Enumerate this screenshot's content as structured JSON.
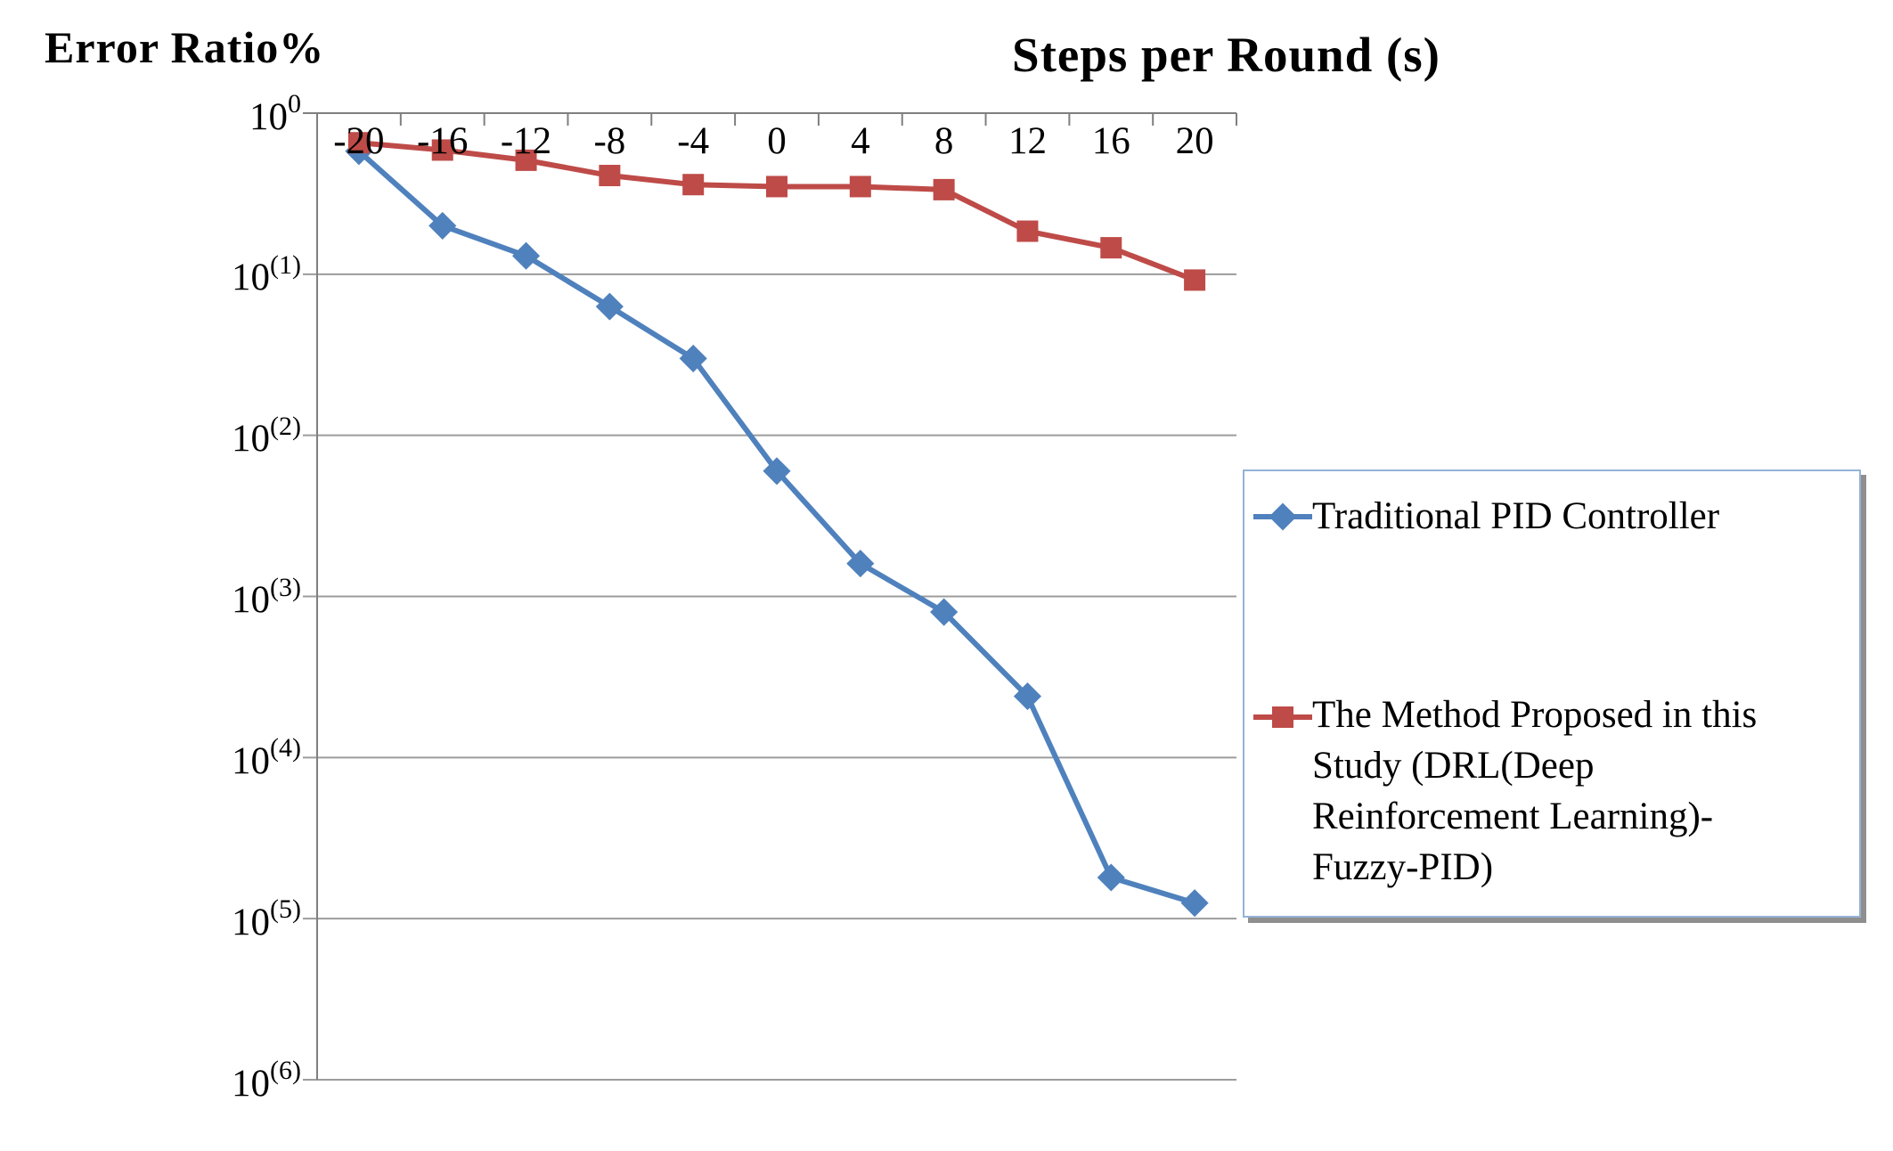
{
  "chart_data": {
    "type": "line",
    "title": "Steps per Round (s)",
    "ylabel": "Error Ratio%",
    "xlabel": "",
    "x": [
      -20,
      -16,
      -12,
      -8,
      -4,
      0,
      4,
      8,
      12,
      16,
      20
    ],
    "x_tick_labels": [
      "-20",
      "-16",
      "-12",
      "-8",
      "-4",
      "0",
      "4",
      "8",
      "12",
      "16",
      "20"
    ],
    "y_scale": "log",
    "ylim": [
      1e-06,
      1
    ],
    "y_tick_labels": [
      "10^0",
      "10^(1)",
      "10^(2)",
      "10^(3)",
      "10^(4)",
      "10^(5)",
      "10^(6)"
    ],
    "grid": true,
    "legend_position": "right",
    "series": [
      {
        "name": "Traditional PID Controller",
        "color": "#4F81BD",
        "marker": "diamond",
        "values": [
          0.58,
          0.2,
          0.13,
          0.063,
          0.03,
          0.006,
          0.0016,
          0.0008,
          0.00024,
          1.8e-05,
          1.25e-05
        ]
      },
      {
        "name": "The Method Proposed in this Study (DRL(Deep Reinforcement Learning)-Fuzzy-PID)",
        "color": "#BE4B48",
        "marker": "square",
        "values": [
          0.655,
          0.59,
          0.51,
          0.41,
          0.36,
          0.35,
          0.35,
          0.335,
          0.185,
          0.146,
          0.092
        ]
      }
    ]
  },
  "colors": {
    "axis": "#7F7F7F",
    "gridline": "#9C9C9C",
    "legend_border": "#95B3D7",
    "background": "#FFFFFF"
  }
}
